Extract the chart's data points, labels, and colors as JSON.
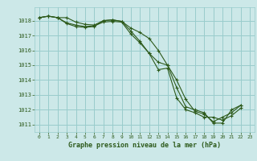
{
  "bg_color": "#cce8e8",
  "grid_color": "#99cccc",
  "line_color": "#2d5a1b",
  "title": "Graphe pression niveau de la mer (hPa)",
  "title_color": "#2d5a1b",
  "xlim": [
    -0.5,
    23.5
  ],
  "ylim": [
    1010.5,
    1018.9
  ],
  "yticks": [
    1011,
    1012,
    1013,
    1014,
    1015,
    1016,
    1017,
    1018
  ],
  "xticks": [
    0,
    1,
    2,
    3,
    4,
    5,
    6,
    7,
    8,
    9,
    10,
    11,
    12,
    13,
    14,
    15,
    16,
    17,
    18,
    19,
    20,
    21,
    22,
    23
  ],
  "line1": [
    1018.2,
    1018.3,
    1018.2,
    1018.2,
    1017.9,
    1017.75,
    1017.7,
    1018.0,
    1018.05,
    1017.95,
    1017.5,
    1017.2,
    1016.8,
    1016.0,
    1015.0,
    1013.5,
    1012.2,
    1012.0,
    1011.8,
    1011.1,
    1011.1,
    1012.0,
    1012.3
  ],
  "line2": [
    1018.2,
    1018.3,
    1018.2,
    1017.8,
    1017.6,
    1017.55,
    1017.6,
    1018.0,
    1018.05,
    1017.95,
    1017.3,
    1016.6,
    1015.8,
    1014.7,
    1014.8,
    1012.8,
    1012.0,
    1011.8,
    1011.5,
    1011.5,
    1011.3,
    1011.6,
    1012.1
  ],
  "line3": [
    1018.2,
    1018.3,
    1018.2,
    1017.85,
    1017.7,
    1017.6,
    1017.65,
    1017.9,
    1017.95,
    1017.9,
    1017.1,
    1016.5,
    1015.8,
    1015.2,
    1015.0,
    1014.0,
    1012.7,
    1011.9,
    1011.7,
    1011.2,
    1011.5,
    1011.8,
    1012.3
  ]
}
